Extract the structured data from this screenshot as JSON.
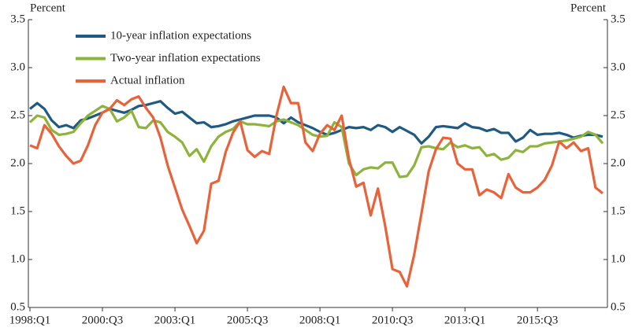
{
  "chart_data": {
    "type": "line",
    "y_label": "Percent",
    "y2_label": "Percent",
    "categories": [
      "1998:Q1",
      null,
      null,
      null,
      null,
      null,
      null,
      null,
      null,
      null,
      "2000:Q3",
      null,
      null,
      null,
      null,
      null,
      null,
      null,
      null,
      null,
      "2003:Q1",
      null,
      null,
      null,
      null,
      null,
      null,
      null,
      null,
      null,
      "2005:Q3",
      null,
      null,
      null,
      null,
      null,
      null,
      null,
      null,
      null,
      "2008:Q1",
      null,
      null,
      null,
      null,
      null,
      null,
      null,
      null,
      null,
      "2010:Q3",
      null,
      null,
      null,
      null,
      null,
      null,
      null,
      null,
      null,
      "2013:Q1",
      null,
      null,
      null,
      null,
      null,
      null,
      null,
      null,
      null,
      "2015:Q3",
      null,
      null,
      null,
      null,
      null,
      null,
      null,
      null,
      null
    ],
    "series": [
      {
        "name": "10-year inflation expectations",
        "color": "#1f5a82",
        "values": [
          2.57,
          2.63,
          2.57,
          2.45,
          2.38,
          2.4,
          2.37,
          2.45,
          2.47,
          2.5,
          2.53,
          2.57,
          2.55,
          2.53,
          2.56,
          2.6,
          2.61,
          2.63,
          2.65,
          2.58,
          2.52,
          2.54,
          2.48,
          2.42,
          2.43,
          2.38,
          2.39,
          2.41,
          2.44,
          2.46,
          2.48,
          2.5,
          2.5,
          2.5,
          2.48,
          2.42,
          2.48,
          2.43,
          2.4,
          2.37,
          2.33,
          2.3,
          2.32,
          2.35,
          2.38,
          2.37,
          2.38,
          2.35,
          2.4,
          2.38,
          2.33,
          2.38,
          2.34,
          2.3,
          2.21,
          2.28,
          2.38,
          2.39,
          2.38,
          2.37,
          2.42,
          2.38,
          2.37,
          2.34,
          2.36,
          2.32,
          2.32,
          2.23,
          2.27,
          2.35,
          2.3,
          2.31,
          2.31,
          2.32,
          2.3,
          2.27,
          2.29,
          2.3,
          2.3,
          2.28
        ]
      },
      {
        "name": "Two-year inflation expectations",
        "color": "#8db33a",
        "values": [
          2.43,
          2.5,
          2.48,
          2.35,
          2.3,
          2.31,
          2.33,
          2.42,
          2.5,
          2.55,
          2.6,
          2.57,
          2.44,
          2.48,
          2.55,
          2.38,
          2.37,
          2.45,
          2.43,
          2.33,
          2.28,
          2.22,
          2.08,
          2.15,
          2.02,
          2.18,
          2.28,
          2.33,
          2.36,
          2.44,
          2.41,
          2.41,
          2.4,
          2.39,
          2.44,
          2.46,
          2.43,
          2.4,
          2.35,
          2.3,
          2.28,
          2.29,
          2.43,
          2.38,
          2.0,
          1.88,
          1.94,
          1.96,
          1.95,
          2.01,
          2.01,
          1.86,
          1.87,
          1.98,
          2.17,
          2.18,
          2.16,
          2.15,
          2.22,
          2.17,
          2.19,
          2.16,
          2.17,
          2.08,
          2.1,
          2.04,
          2.06,
          2.14,
          2.12,
          2.18,
          2.18,
          2.21,
          2.22,
          2.23,
          2.24,
          2.26,
          2.28,
          2.33,
          2.3,
          2.21
        ]
      },
      {
        "name": "Actual inflation",
        "color": "#e8623a",
        "values": [
          2.19,
          2.16,
          2.4,
          2.31,
          2.18,
          2.08,
          2.0,
          2.03,
          2.19,
          2.4,
          2.53,
          2.57,
          2.66,
          2.61,
          2.67,
          2.7,
          2.58,
          2.48,
          2.27,
          1.98,
          1.75,
          1.52,
          1.35,
          1.17,
          1.3,
          1.79,
          1.82,
          2.12,
          2.32,
          2.44,
          2.14,
          2.07,
          2.13,
          2.1,
          2.5,
          2.8,
          2.63,
          2.63,
          2.22,
          2.13,
          2.31,
          2.4,
          2.35,
          2.5,
          2.05,
          1.76,
          1.8,
          1.46,
          1.74,
          1.35,
          0.9,
          0.87,
          0.72,
          1.05,
          1.48,
          1.92,
          2.15,
          2.27,
          2.26,
          2.0,
          1.94,
          1.94,
          1.67,
          1.73,
          1.7,
          1.64,
          1.89,
          1.75,
          1.7,
          1.7,
          1.75,
          1.83,
          1.98,
          2.23,
          2.16,
          2.22,
          2.13,
          2.16,
          1.75,
          1.69
        ]
      }
    ],
    "ylim": [
      0.5,
      3.5
    ],
    "yticks": [
      0.5,
      {
        "value": 1.0,
        "label": "1.0"
      },
      1.5,
      {
        "value": 2.0,
        "label": "2.0"
      },
      2.5,
      {
        "value": 3.0,
        "label": "3.0"
      },
      3.5
    ],
    "y2lim": [
      0.5,
      3.5
    ],
    "y2ticks": [
      0.5,
      {
        "value": 1.0,
        "label": "1.0"
      },
      1.5,
      {
        "value": 2.0,
        "label": "2.0"
      },
      2.5,
      {
        "value": 3.0,
        "label": "3.0"
      },
      3.5
    ],
    "legend": "upper left",
    "grid": false
  }
}
